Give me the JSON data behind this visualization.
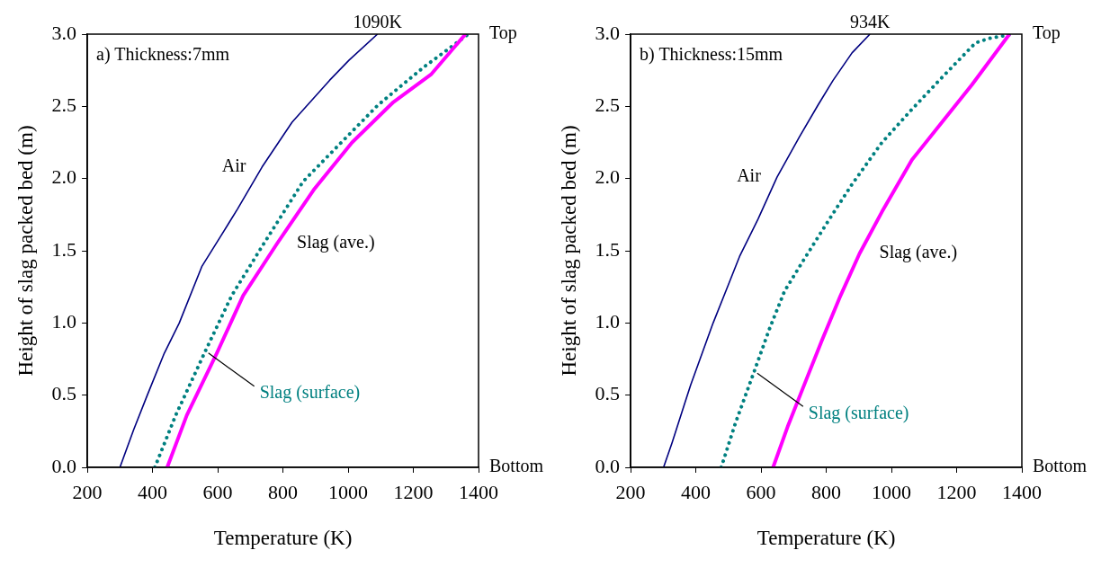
{
  "chart_data": [
    {
      "type": "line",
      "title": "a) Thickness:7mm",
      "xlabel": "Temperature (K)",
      "ylabel": "Height of slag packed bed (m)",
      "xlim": [
        200,
        1400
      ],
      "xticks": [
        200,
        400,
        600,
        800,
        1000,
        1200,
        1400
      ],
      "ylim": [
        0,
        3
      ],
      "yticks": [
        {
          "value": 0,
          "label": "0.0"
        },
        {
          "value": 0.5,
          "label": "0.5"
        },
        {
          "value": 1,
          "label": "1.0"
        },
        {
          "value": 1.5,
          "label": "1.5"
        },
        {
          "value": 2,
          "label": "2.0"
        },
        {
          "value": 2.5,
          "label": "2.5"
        },
        {
          "value": 3,
          "label": "3.0"
        }
      ],
      "grid": false,
      "legend": false,
      "annotations": [
        {
          "text": "1090K",
          "x": 1090,
          "y": 3.0
        },
        "Top",
        "Bottom"
      ],
      "series": [
        {
          "name": "Air",
          "color": "#000080",
          "line_style": "solid",
          "x": [
            300,
            342,
            384,
            436,
            482,
            551,
            609,
            661,
            736,
            828,
            943,
            1003,
            1090
          ],
          "values": [
            0,
            0.26,
            0.5,
            0.79,
            1.0,
            1.39,
            1.6,
            1.79,
            2.08,
            2.39,
            2.68,
            2.82,
            3.0
          ]
        },
        {
          "name": "Slag (ave.)",
          "color": "#ff00ff",
          "line_style": "solid",
          "x": [
            445,
            505,
            597,
            678,
            782,
            897,
            1012,
            1139,
            1254,
            1360
          ],
          "values": [
            0,
            0.36,
            0.79,
            1.19,
            1.55,
            1.93,
            2.25,
            2.53,
            2.72,
            3.0
          ]
        },
        {
          "name": "Slag (surface)",
          "color": "#008080",
          "line_style": "dotted",
          "x": [
            407,
            471,
            563,
            643,
            736,
            862,
            966,
            1092,
            1231,
            1369
          ],
          "values": [
            0,
            0.36,
            0.81,
            1.19,
            1.53,
            1.98,
            2.22,
            2.51,
            2.77,
            3.0
          ]
        }
      ]
    },
    {
      "type": "line",
      "title": "b) Thickness:15mm",
      "xlabel": "Temperature (K)",
      "ylabel": "Height of slag packed bed (m)",
      "xlim": [
        200,
        1400
      ],
      "xticks": [
        200,
        400,
        600,
        800,
        1000,
        1200,
        1400
      ],
      "ylim": [
        0,
        3
      ],
      "yticks": [
        {
          "value": 0,
          "label": "0.0"
        },
        {
          "value": 0.5,
          "label": "0.5"
        },
        {
          "value": 1,
          "label": "1.0"
        },
        {
          "value": 1.5,
          "label": "1.5"
        },
        {
          "value": 2,
          "label": "2.0"
        },
        {
          "value": 2.5,
          "label": "2.5"
        },
        {
          "value": 3,
          "label": "3.0"
        }
      ],
      "grid": false,
      "legend": false,
      "annotations": [
        {
          "text": "934K",
          "x": 934,
          "y": 3.0
        },
        "Top",
        "Bottom"
      ],
      "series": [
        {
          "name": "Air",
          "color": "#000080",
          "line_style": "solid",
          "x": [
            301,
            327,
            384,
            453,
            499,
            534,
            591,
            649,
            718,
            775,
            821,
            879,
            934
          ],
          "values": [
            0,
            0.17,
            0.57,
            1.0,
            1.26,
            1.46,
            1.72,
            2.01,
            2.29,
            2.51,
            2.68,
            2.87,
            3.0
          ]
        },
        {
          "name": "Slag (ave.)",
          "color": "#ff00ff",
          "line_style": "solid",
          "x": [
            637,
            683,
            741,
            787,
            844,
            902,
            971,
            1063,
            1155,
            1247,
            1362
          ],
          "values": [
            0,
            0.29,
            0.62,
            0.88,
            1.19,
            1.48,
            1.77,
            2.13,
            2.39,
            2.65,
            3.0
          ]
        },
        {
          "name": "Slag (surface)",
          "color": "#008080",
          "line_style": "dotted",
          "x": [
            478,
            522,
            580,
            626,
            672,
            729,
            810,
            879,
            971,
            1063,
            1155,
            1258,
            1299,
            1371
          ],
          "values": [
            0,
            0.31,
            0.67,
            0.96,
            1.22,
            1.43,
            1.72,
            1.96,
            2.25,
            2.48,
            2.7,
            2.94,
            2.97,
            3.0
          ]
        }
      ]
    }
  ]
}
